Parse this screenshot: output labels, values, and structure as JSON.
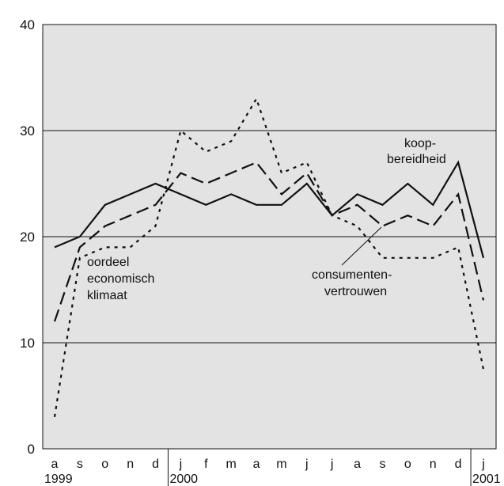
{
  "chart_data": {
    "type": "line",
    "categories": [
      "a",
      "s",
      "o",
      "n",
      "d",
      "j",
      "f",
      "m",
      "a",
      "m",
      "j",
      "j",
      "a",
      "s",
      "o",
      "n",
      "d",
      "j"
    ],
    "year_labels": [
      {
        "label": "1999",
        "index": 0
      },
      {
        "label": "2000",
        "index": 5
      },
      {
        "label": "2001",
        "index": 17
      }
    ],
    "ylim": [
      0,
      40
    ],
    "yticks": [
      0,
      10,
      20,
      30,
      40
    ],
    "grid": "horizontal",
    "background": "#e3e3e3",
    "series": [
      {
        "style": "solid",
        "values": [
          19,
          20,
          23,
          24,
          25,
          24,
          23,
          24,
          23,
          23,
          25,
          22,
          24,
          23,
          25,
          23,
          27,
          18
        ]
      },
      {
        "style": "dashed",
        "values": [
          12,
          19,
          21,
          22,
          23,
          26,
          25,
          26,
          27,
          24,
          26,
          22,
          23,
          21,
          22,
          21,
          24,
          14
        ]
      },
      {
        "style": "dotted",
        "values": [
          3,
          18,
          19,
          19,
          21,
          30,
          28,
          29,
          33,
          26,
          27,
          22,
          21,
          18,
          18,
          18,
          19,
          7.5
        ]
      }
    ],
    "annotations": [
      {
        "id": "koop",
        "lines": [
          "koop-",
          "bereidheid"
        ]
      },
      {
        "id": "oordeel",
        "lines": [
          "oordeel",
          "economisch",
          "klimaat"
        ]
      },
      {
        "id": "consumenten",
        "lines": [
          "consumenten-",
          "vertrouwen"
        ]
      }
    ]
  }
}
